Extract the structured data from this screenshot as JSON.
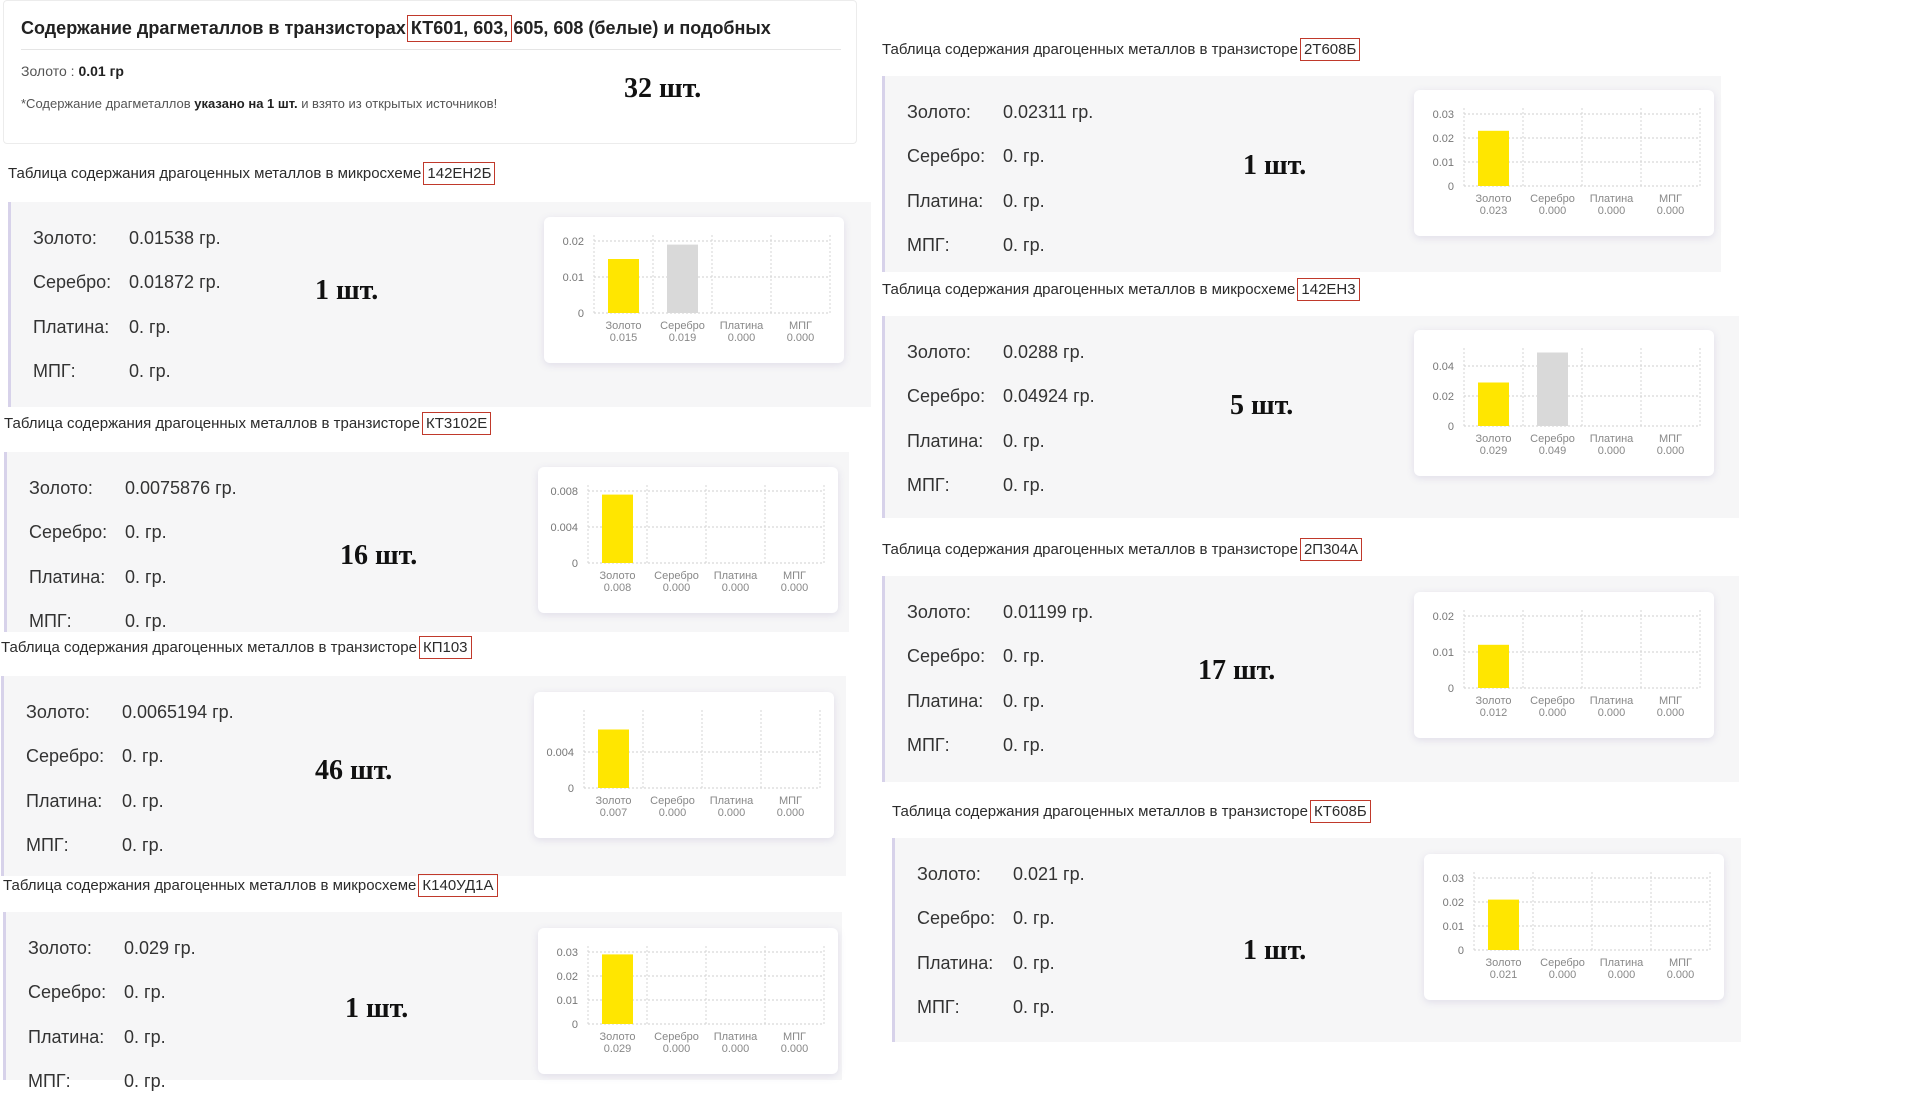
{
  "header": {
    "title_pre": "Содержание драгметаллов в транзисторах",
    "title_boxed": "КТ601, 603,",
    "title_post": "605, 608 (белые) и подобных",
    "gold_label": "Золото :",
    "gold_value": "0.01 гр",
    "note_pre": "*Содержание драгметаллов",
    "note_bold": "указано на 1 шт.",
    "note_post": "и взято из открытых источников!",
    "qty": "32 шт."
  },
  "labels": {
    "gold": "Золото:",
    "silver": "Серебро:",
    "platinum": "Платина:",
    "mpg": "МПГ:"
  },
  "colors": {
    "gold": "#ffe600",
    "silver": "#d9d9d9",
    "redbox": "#c0392b",
    "panel_border": "#d7d2ea"
  },
  "sections": [
    {
      "title": "Таблица содержания драгоценных металлов в микросхеме",
      "part": "142ЕН2Б",
      "values": [
        "0.01538 гр.",
        "0.01872 гр.",
        "0. гр.",
        "0. гр."
      ],
      "qty": "1 шт.",
      "chart_data": {
        "type": "bar",
        "categories": [
          "Золото",
          "Серебро",
          "Платина",
          "МПГ"
        ],
        "values": [
          0.015,
          0.019,
          0,
          0
        ],
        "value_labels": [
          "0.015",
          "0.019",
          "0.000",
          "0.000"
        ],
        "ylim": [
          0,
          0.02
        ],
        "yticks": [
          "0",
          "0.01",
          "0.02"
        ],
        "ytick_values": [
          0,
          0.01,
          0.02
        ],
        "grid": true
      }
    },
    {
      "title": "Таблица содержания драгоценных металлов в транзисторе",
      "part": "КТ3102Е",
      "values": [
        "0.0075876 гр.",
        "0. гр.",
        "0. гр.",
        "0. гр."
      ],
      "qty": "16 шт.",
      "chart_data": {
        "type": "bar",
        "categories": [
          "Золото",
          "Серебро",
          "Платина",
          "МПГ"
        ],
        "values": [
          0.0076,
          0,
          0,
          0
        ],
        "value_labels": [
          "0.008",
          "0.000",
          "0.000",
          "0.000"
        ],
        "ylim": [
          0,
          0.008
        ],
        "yticks": [
          "0",
          "0.004",
          "0.008"
        ],
        "ytick_values": [
          0,
          0.004,
          0.008
        ],
        "grid": true
      }
    },
    {
      "title": "Таблица содержания драгоценных металлов в транзисторе",
      "part": "КП103",
      "values": [
        "0.0065194 гр.",
        "0. гр.",
        "0. гр.",
        "0. гр."
      ],
      "qty": "46 шт.",
      "chart_data": {
        "type": "bar",
        "categories": [
          "Золото",
          "Серебро",
          "Платина",
          "МПГ"
        ],
        "values": [
          0.0065,
          0,
          0,
          0
        ],
        "value_labels": [
          "0.007",
          "0.000",
          "0.000",
          "0.000"
        ],
        "ylim": [
          0,
          0.008
        ],
        "yticks": [
          "0",
          "0.004"
        ],
        "ytick_values": [
          0,
          0.004
        ],
        "grid": true
      }
    },
    {
      "title": "Таблица содержания драгоценных металлов в микросхеме",
      "part": "К140УД1А",
      "values": [
        "0.029 гр.",
        "0. гр.",
        "0. гр.",
        "0. гр."
      ],
      "qty": "1 шт.",
      "chart_data": {
        "type": "bar",
        "categories": [
          "Золото",
          "Серебро",
          "Платина",
          "МПГ"
        ],
        "values": [
          0.029,
          0,
          0,
          0
        ],
        "value_labels": [
          "0.029",
          "0.000",
          "0.000",
          "0.000"
        ],
        "ylim": [
          0,
          0.03
        ],
        "yticks": [
          "0",
          "0.01",
          "0.02",
          "0.03"
        ],
        "ytick_values": [
          0,
          0.01,
          0.02,
          0.03
        ],
        "grid": true
      }
    },
    {
      "title": "Таблица содержания драгоценных металлов в транзисторе",
      "part": "2Т608Б",
      "values": [
        "0.02311 гр.",
        "0. гр.",
        "0. гр.",
        "0. гр."
      ],
      "qty": "1 шт.",
      "chart_data": {
        "type": "bar",
        "categories": [
          "Золото",
          "Серебро",
          "Платина",
          "МПГ"
        ],
        "values": [
          0.023,
          0,
          0,
          0
        ],
        "value_labels": [
          "0.023",
          "0.000",
          "0.000",
          "0.000"
        ],
        "ylim": [
          0,
          0.03
        ],
        "yticks": [
          "0",
          "0.01",
          "0.02",
          "0.03"
        ],
        "ytick_values": [
          0,
          0.01,
          0.02,
          0.03
        ],
        "grid": true
      }
    },
    {
      "title": "Таблица содержания драгоценных металлов в микросхеме",
      "part": "142ЕН3",
      "values": [
        "0.0288 гр.",
        "0.04924 гр.",
        "0. гр.",
        "0. гр."
      ],
      "qty": "5 шт.",
      "chart_data": {
        "type": "bar",
        "categories": [
          "Золото",
          "Серебро",
          "Платина",
          "МПГ"
        ],
        "values": [
          0.029,
          0.049,
          0,
          0
        ],
        "value_labels": [
          "0.029",
          "0.049",
          "0.000",
          "0.000"
        ],
        "ylim": [
          0,
          0.048
        ],
        "yticks": [
          "0",
          "0.02",
          "0.04"
        ],
        "ytick_values": [
          0,
          0.02,
          0.04
        ],
        "grid": true
      }
    },
    {
      "title": "Таблица содержания драгоценных металлов в транзисторе",
      "part": "2П304А",
      "values": [
        "0.01199 гр.",
        "0. гр.",
        "0. гр.",
        "0. гр."
      ],
      "qty": "17 шт.",
      "chart_data": {
        "type": "bar",
        "categories": [
          "Золото",
          "Серебро",
          "Платина",
          "МПГ"
        ],
        "values": [
          0.012,
          0,
          0,
          0
        ],
        "value_labels": [
          "0.012",
          "0.000",
          "0.000",
          "0.000"
        ],
        "ylim": [
          0,
          0.02
        ],
        "yticks": [
          "0",
          "0.01",
          "0.02"
        ],
        "ytick_values": [
          0,
          0.01,
          0.02
        ],
        "grid": true
      }
    },
    {
      "title": "Таблица содержания драгоценных металлов в транзисторе",
      "part": "КТ608Б",
      "values": [
        "0.021 гр.",
        "0. гр.",
        "0. гр.",
        "0. гр."
      ],
      "qty": "1 шт.",
      "chart_data": {
        "type": "bar",
        "categories": [
          "Золото",
          "Серебро",
          "Платина",
          "МПГ"
        ],
        "values": [
          0.021,
          0,
          0,
          0
        ],
        "value_labels": [
          "0.021",
          "0.000",
          "0.000",
          "0.000"
        ],
        "ylim": [
          0,
          0.03
        ],
        "yticks": [
          "0",
          "0.01",
          "0.02",
          "0.03"
        ],
        "ytick_values": [
          0,
          0.01,
          0.02,
          0.03
        ],
        "grid": true
      }
    }
  ]
}
